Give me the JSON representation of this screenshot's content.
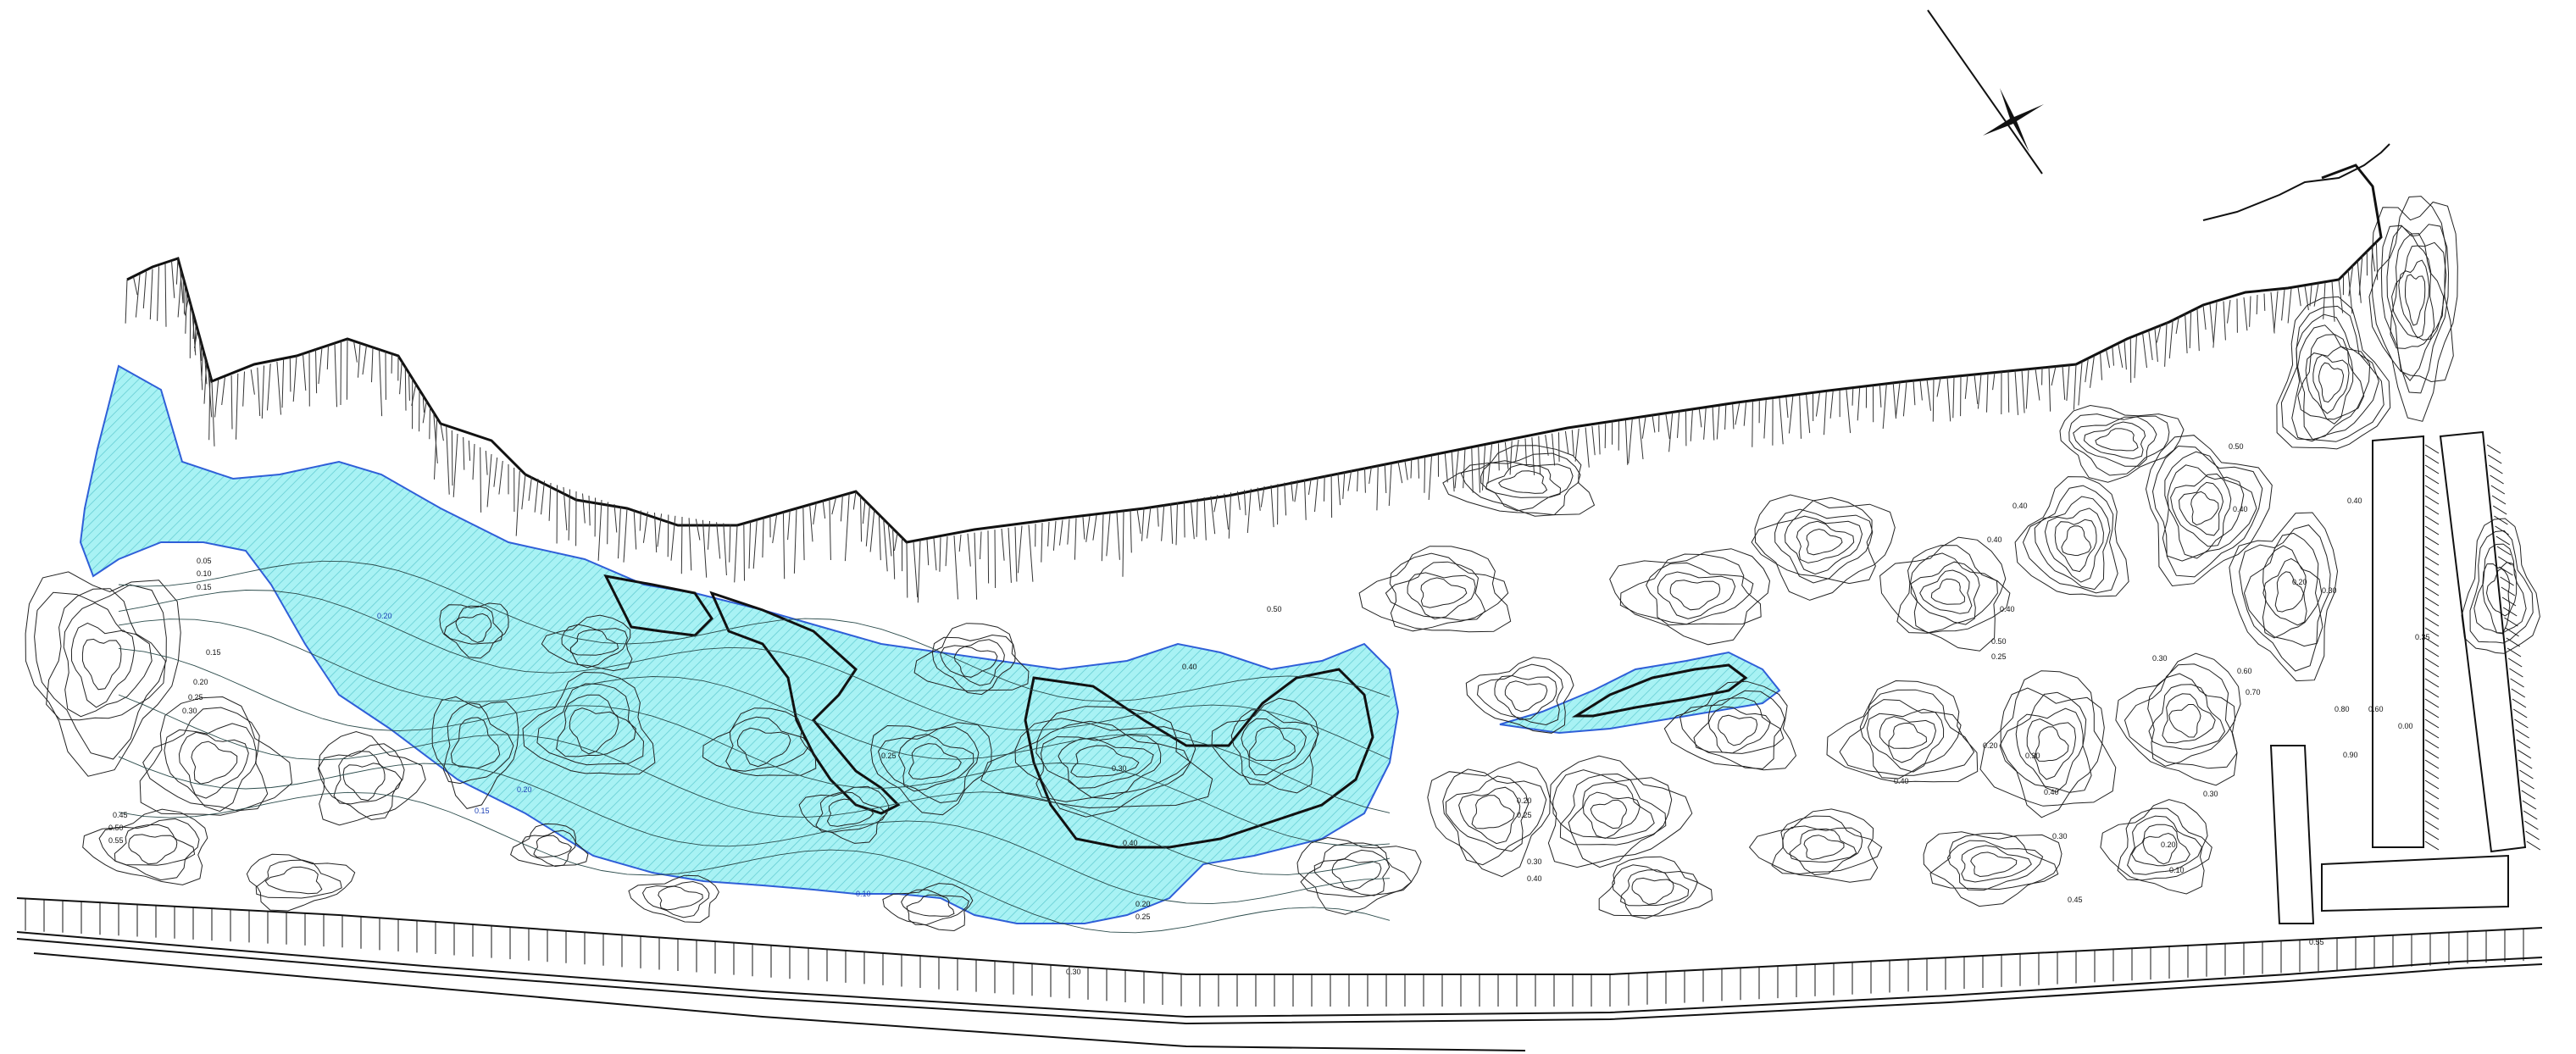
{
  "map": {
    "north_arrow": "north-arrow-icon",
    "colors": {
      "water_fill": "#a8f2f4",
      "water_hatch": "#5ec9cf",
      "water_edge": "#2f5fd8",
      "contour": "#222222",
      "background": "#ffffff"
    },
    "contour_labels": {
      "l01": "0.05",
      "l02": "0.10",
      "l03": "0.15",
      "l04": "0.15",
      "l05": "0.20",
      "l06": "0.25",
      "l07": "0.30",
      "l08": "0.45",
      "l09": "0.50",
      "l10": "0.55",
      "l11": "0.20",
      "l12": "0.20",
      "l13": "0.15",
      "l14": "0.10",
      "l15": "0.20",
      "l16": "0.25",
      "l17": "0.30",
      "l18": "0.40",
      "l19": "0.25",
      "l20": "0.30",
      "l21": "0.40",
      "l22": "0.20",
      "l23": "0.25",
      "l24": "0.30",
      "l25": "0.40",
      "l26": "0.40",
      "l27": "0.50",
      "l28": "0.25",
      "l29": "0.20",
      "l30": "0.30",
      "l31": "0.40",
      "l32": "0.30",
      "l33": "0.40",
      "l34": "0.50",
      "l35": "0.60",
      "l36": "0.70",
      "l37": "0.80",
      "l38": "0.30",
      "l39": "0.40",
      "l40": "0.90",
      "l41": "0.40",
      "l42": "0.45",
      "l43": "0.50",
      "l44": "0.55",
      "l45": "0.30",
      "l46": "0.20",
      "l47": "0.10",
      "l48": "0.00",
      "l49": "0.40",
      "l50": "0.30",
      "l51": "0.20",
      "l52": "0.40",
      "l53": "0.35",
      "l54": "0.60"
    }
  }
}
